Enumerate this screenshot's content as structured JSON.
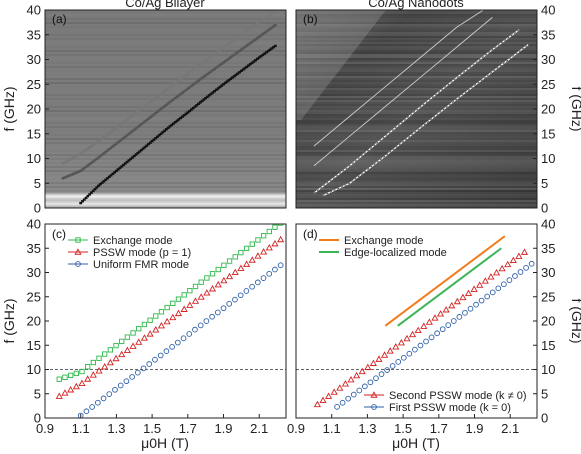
{
  "chart_data": [
    {
      "id": "a",
      "type": "heatmap",
      "tag": "(a)",
      "title": "Co/Ag Bilayer",
      "ylabel": "f (GHz)",
      "ylim": [
        0,
        40
      ],
      "xlim": [
        0.9,
        2.25
      ],
      "y_ticks": [
        0,
        5,
        10,
        15,
        20,
        25,
        30,
        35,
        40
      ],
      "background": "grayscale",
      "traces": [
        {
          "name": "uniform",
          "color": "#111111",
          "x": [
            1.1,
            1.2,
            1.3,
            1.4,
            1.5,
            1.6,
            1.7,
            1.8,
            1.9,
            2.0,
            2.1,
            2.2
          ],
          "y": [
            1.0,
            4.5,
            7.5,
            10.5,
            13.5,
            16.5,
            19.3,
            22.2,
            25.0,
            27.7,
            30.4,
            33.0
          ]
        },
        {
          "name": "pssw",
          "color": "#555555",
          "x": [
            1.0,
            1.1,
            1.2,
            1.3,
            1.4,
            1.5,
            1.6,
            1.7,
            1.8,
            1.9,
            2.0,
            2.1,
            2.2
          ],
          "y": [
            6.0,
            7.5,
            10.2,
            13.0,
            15.8,
            18.6,
            21.4,
            24.1,
            26.8,
            29.4,
            32.0,
            34.6,
            37.2
          ]
        },
        {
          "name": "exchange",
          "color": "#777777",
          "x": [
            1.0,
            1.1,
            1.2,
            1.3,
            1.4,
            1.5,
            1.6,
            1.7,
            1.8,
            1.9,
            2.0,
            2.1,
            2.2
          ],
          "y": [
            9.0,
            11.0,
            13.5,
            16.2,
            19.0,
            21.7,
            24.4,
            27.1,
            29.8,
            32.4,
            35.0,
            37.6,
            40.0
          ]
        }
      ]
    },
    {
      "id": "b",
      "type": "heatmap",
      "tag": "(b)",
      "title": "Co/Ag Nanodots",
      "ylabel": "f (GHz)",
      "ylim": [
        0,
        40
      ],
      "xlim": [
        0.9,
        2.25
      ],
      "y_ticks": [
        0,
        5,
        10,
        15,
        20,
        25,
        30,
        35,
        40
      ],
      "background": "grayscale-noisy",
      "traces": [
        {
          "name": "first-pssw",
          "color": "#ffffff",
          "x": [
            1.05,
            1.2,
            1.4,
            1.6,
            1.8,
            2.0,
            2.2
          ],
          "y": [
            2.5,
            5.0,
            10.5,
            16.3,
            22.0,
            27.5,
            33.0
          ]
        },
        {
          "name": "second-pssw",
          "color": "#ffffff",
          "x": [
            1.0,
            1.2,
            1.4,
            1.6,
            1.8,
            2.0,
            2.15
          ],
          "y": [
            3.0,
            8.5,
            14.5,
            20.5,
            26.3,
            32.0,
            36.0
          ]
        },
        {
          "name": "edge",
          "color": "#cccccc",
          "x": [
            1.0,
            1.2,
            1.4,
            1.6,
            1.8,
            2.0
          ],
          "y": [
            8.5,
            14.5,
            20.5,
            26.5,
            32.5,
            38.5
          ]
        },
        {
          "name": "exchange",
          "color": "#cccccc",
          "x": [
            1.0,
            1.2,
            1.4,
            1.6,
            1.8,
            1.95
          ],
          "y": [
            12.5,
            18.5,
            24.5,
            30.5,
            36.5,
            40.0
          ]
        }
      ]
    },
    {
      "id": "c",
      "type": "scatter",
      "tag": "(c)",
      "xlabel": "μ0H (T)",
      "ylabel": "f (GHz)",
      "xlim": [
        0.9,
        2.25
      ],
      "ylim": [
        0,
        40
      ],
      "x_ticks": [
        0.9,
        1.1,
        1.3,
        1.5,
        1.7,
        1.9,
        2.1
      ],
      "x_tick_labels": [
        "0.9",
        "1.1",
        "1.3",
        "1.5",
        "1.7",
        "1.9",
        "2.1"
      ],
      "y_ticks": [
        0,
        5,
        10,
        15,
        20,
        25,
        30,
        35,
        40
      ],
      "reference_line_y": 10,
      "legend": [
        "Exchange mode",
        "PSSW mode (p = 1)",
        "Uniform FMR mode"
      ],
      "series": [
        {
          "name": "Exchange mode",
          "marker": "square",
          "color": "#2db84a",
          "x0": 0.98,
          "x1": 2.22,
          "n": 40,
          "y0": 8.0,
          "y1": 40.2,
          "kink": [
            1.1,
            9.5
          ]
        },
        {
          "name": "PSSW mode (p = 1)",
          "marker": "triangle",
          "color": "#d42020",
          "x0": 0.98,
          "x1": 2.22,
          "n": 40,
          "y0": 4.5,
          "y1": 36.8,
          "kink": [
            1.1,
            7.0
          ]
        },
        {
          "name": "Uniform FMR mode",
          "marker": "circle",
          "color": "#2f5fa8",
          "x0": 1.1,
          "x1": 2.22,
          "n": 36,
          "y0": 0.5,
          "y1": 31.5,
          "kink": [
            1.1,
            0.5
          ]
        }
      ]
    },
    {
      "id": "d",
      "type": "line",
      "tag": "(d)",
      "xlabel": "μ0H (T)",
      "ylabel": "f (GHz)",
      "xlim": [
        0.9,
        2.25
      ],
      "ylim": [
        0,
        40
      ],
      "x_ticks": [
        0.9,
        1.1,
        1.3,
        1.5,
        1.7,
        1.9,
        2.1
      ],
      "x_tick_labels": [
        "0.9",
        "1.1",
        "1.3",
        "1.5",
        "1.7",
        "1.9",
        "2.1"
      ],
      "y_ticks": [
        0,
        5,
        10,
        15,
        20,
        25,
        30,
        35,
        40
      ],
      "reference_line_y": 10,
      "legend_top": [
        "Exchange mode",
        "Edge-localized mode"
      ],
      "legend_bottom": [
        "Second PSSW mode (k ≠ 0)",
        "First PSSW mode (k = 0)"
      ],
      "lines": [
        {
          "name": "Exchange mode",
          "color": "#f07c1a",
          "x": [
            1.4,
            2.07
          ],
          "y": [
            19.0,
            37.5
          ]
        },
        {
          "name": "Edge-localized mode",
          "color": "#3bb45a",
          "x": [
            1.47,
            2.05
          ],
          "y": [
            19.0,
            35.0
          ]
        }
      ],
      "series": [
        {
          "name": "Second PSSW mode (k ≠ 0)",
          "marker": "triangle",
          "color": "#d42020",
          "x0": 1.02,
          "x1": 2.18,
          "n": 38,
          "y0": 2.8,
          "y1": 34.2
        },
        {
          "name": "First PSSW mode (k = 0)",
          "marker": "circle",
          "color": "#2f5fa8",
          "x0": 1.13,
          "x1": 2.22,
          "n": 36,
          "y0": 2.3,
          "y1": 31.8
        }
      ]
    }
  ]
}
